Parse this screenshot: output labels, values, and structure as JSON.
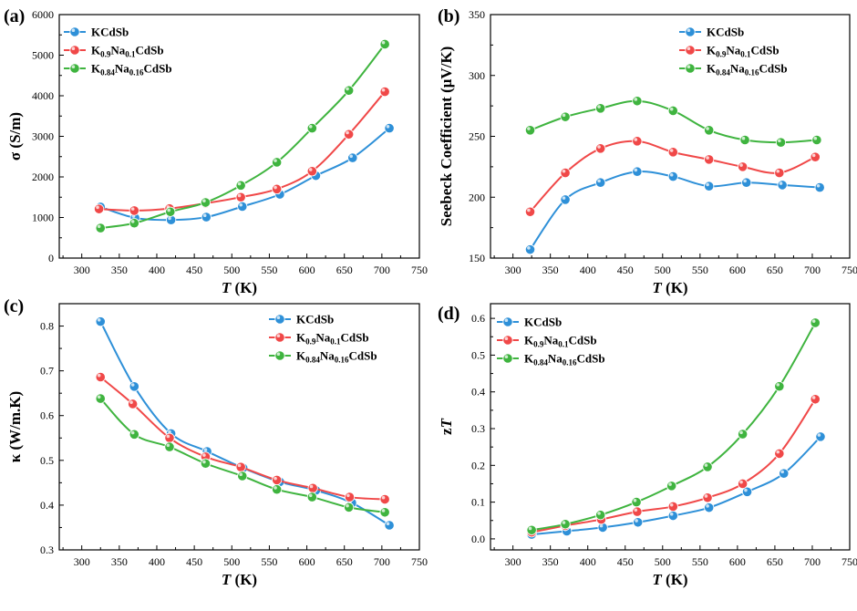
{
  "colors": {
    "s0": "#2e90d8",
    "s1": "#f04848",
    "s2": "#3fb43f"
  },
  "legend": [
    {
      "base": "KCdSb",
      "parts": [
        [
          "t",
          "KCdSb"
        ]
      ]
    },
    {
      "base": "K0.9Na0.1CdSb",
      "parts": [
        [
          "t",
          "K"
        ],
        [
          "s",
          "0.9"
        ],
        [
          "t",
          "Na"
        ],
        [
          "s",
          "0.1"
        ],
        [
          "t",
          "CdSb"
        ]
      ]
    },
    {
      "base": "K0.84Na0.16CdSb",
      "parts": [
        [
          "t",
          "K"
        ],
        [
          "s",
          "0.84"
        ],
        [
          "t",
          "Na"
        ],
        [
          "s",
          "0.16"
        ],
        [
          "t",
          "CdSb"
        ]
      ]
    }
  ],
  "chart_data": [
    {
      "panel_label": "(a)",
      "type": "line",
      "xlabel_italic": "T",
      "xlabel_unit": " (K)",
      "ylabel": "σ (S/m)",
      "xlim": [
        270,
        750
      ],
      "ylim": [
        0,
        6000
      ],
      "xticks": [
        300,
        350,
        400,
        450,
        500,
        550,
        600,
        650,
        700,
        750
      ],
      "yticks": [
        0,
        1000,
        2000,
        3000,
        4000,
        5000,
        6000
      ],
      "legend_position": "top-left",
      "series": [
        {
          "name": "KCdSb",
          "x": [
            325,
            371,
            419,
            466,
            514,
            564,
            612,
            661,
            710
          ],
          "y": [
            1260,
            990,
            940,
            1010,
            1270,
            1570,
            2030,
            2470,
            3200
          ]
        },
        {
          "name": "K0.9Na0.1CdSb",
          "x": [
            323,
            370,
            417,
            465,
            512,
            560,
            607,
            656,
            704
          ],
          "y": [
            1210,
            1170,
            1220,
            1350,
            1500,
            1700,
            2140,
            3050,
            4100
          ]
        },
        {
          "name": "K0.84Na0.16CdSb",
          "x": [
            325,
            370,
            418,
            465,
            512,
            560,
            607,
            656,
            704
          ],
          "y": [
            740,
            860,
            1140,
            1370,
            1790,
            2360,
            3200,
            4130,
            5270
          ]
        }
      ]
    },
    {
      "panel_label": "(b)",
      "type": "line",
      "xlabel_italic": "T",
      "xlabel_unit": " (K)",
      "ylabel": "Seebeck Coefficient (μV/K)",
      "xlim": [
        270,
        750
      ],
      "ylim": [
        150,
        350
      ],
      "xticks": [
        300,
        350,
        400,
        450,
        500,
        550,
        600,
        650,
        700,
        750
      ],
      "yticks": [
        150,
        200,
        250,
        300,
        350
      ],
      "legend_position": "top-right",
      "series": [
        {
          "name": "KCdSb",
          "x": [
            323,
            370,
            417,
            466,
            514,
            562,
            612,
            660,
            710
          ],
          "y": [
            157,
            198,
            212,
            221,
            217,
            209,
            212,
            210,
            208
          ]
        },
        {
          "name": "K0.9Na0.1CdSb",
          "x": [
            323,
            370,
            417,
            466,
            514,
            562,
            607,
            656,
            704
          ],
          "y": [
            188,
            220,
            240,
            246,
            237,
            231,
            225,
            220,
            233
          ]
        },
        {
          "name": "K0.84Na0.16CdSb",
          "x": [
            323,
            370,
            417,
            466,
            514,
            562,
            610,
            658,
            706
          ],
          "y": [
            255,
            266,
            273,
            279,
            271,
            255,
            247,
            245,
            247
          ]
        }
      ]
    },
    {
      "panel_label": "(c)",
      "type": "line",
      "xlabel_italic": "T",
      "xlabel_unit": " (K)",
      "ylabel": "κ (W/m.K)",
      "xlim": [
        270,
        750
      ],
      "ylim": [
        0.3,
        0.85
      ],
      "xticks": [
        300,
        350,
        400,
        450,
        500,
        550,
        600,
        650,
        700,
        750
      ],
      "yticks": [
        0.3,
        0.4,
        0.5,
        0.6,
        0.7,
        0.8
      ],
      "legend_position": "top-right",
      "series": [
        {
          "name": "KCdSb",
          "x": [
            325,
            370,
            419,
            467,
            515,
            564,
            612,
            660,
            710
          ],
          "y": [
            0.81,
            0.665,
            0.56,
            0.52,
            0.483,
            0.452,
            0.433,
            0.405,
            0.355
          ]
        },
        {
          "name": "K0.9Na0.1CdSb",
          "x": [
            325,
            368,
            417,
            465,
            512,
            560,
            608,
            657,
            704
          ],
          "y": [
            0.686,
            0.626,
            0.55,
            0.508,
            0.485,
            0.456,
            0.438,
            0.418,
            0.413
          ]
        },
        {
          "name": "K0.84Na0.16CdSb",
          "x": [
            325,
            370,
            417,
            465,
            514,
            560,
            607,
            656,
            704
          ],
          "y": [
            0.638,
            0.558,
            0.53,
            0.493,
            0.465,
            0.435,
            0.418,
            0.395,
            0.384
          ]
        }
      ]
    },
    {
      "panel_label": "(d)",
      "type": "line",
      "xlabel_italic": "T",
      "xlabel_unit": " (K)",
      "ylabel_italic_suffix": true,
      "ylabel": "zT",
      "xlim": [
        270,
        750
      ],
      "ylim": [
        -0.03,
        0.64
      ],
      "xticks": [
        300,
        350,
        400,
        450,
        500,
        550,
        600,
        650,
        700,
        750
      ],
      "yticks": [
        0.0,
        0.1,
        0.2,
        0.3,
        0.4,
        0.5,
        0.6
      ],
      "legend_position": "top-left",
      "series": [
        {
          "name": "KCdSb",
          "x": [
            325,
            372,
            420,
            467,
            514,
            562,
            613,
            662,
            711
          ],
          "y": [
            0.012,
            0.021,
            0.031,
            0.045,
            0.063,
            0.085,
            0.128,
            0.178,
            0.278
          ]
        },
        {
          "name": "K0.9Na0.1CdSb",
          "x": [
            325,
            370,
            418,
            466,
            514,
            560,
            607,
            656,
            704
          ],
          "y": [
            0.018,
            0.036,
            0.053,
            0.074,
            0.088,
            0.112,
            0.15,
            0.232,
            0.38
          ]
        },
        {
          "name": "K0.84Na0.16CdSb",
          "x": [
            325,
            370,
            417,
            465,
            512,
            560,
            607,
            656,
            704
          ],
          "y": [
            0.024,
            0.04,
            0.065,
            0.1,
            0.144,
            0.196,
            0.285,
            0.415,
            0.588
          ]
        }
      ]
    }
  ]
}
